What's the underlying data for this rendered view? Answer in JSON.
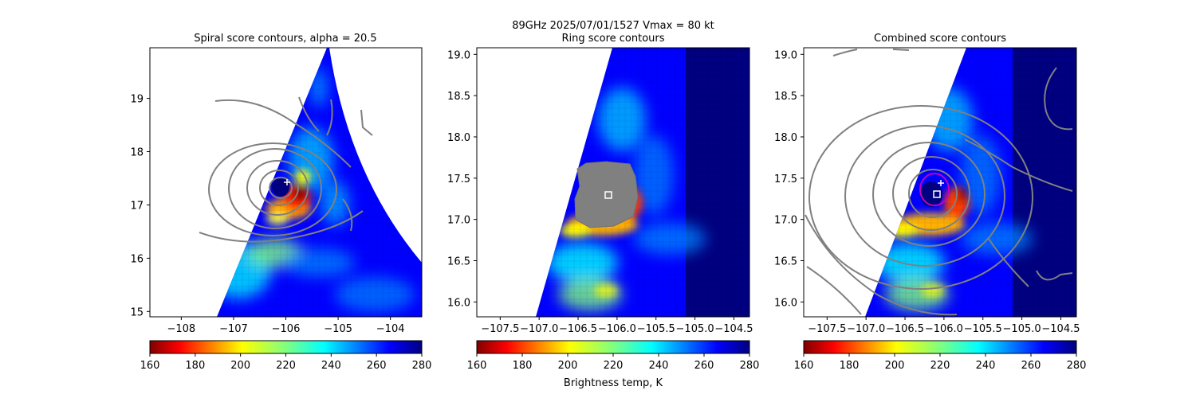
{
  "suptitle_line1": "89GHz  2025/07/01/1527    Vmax = 80 kt",
  "colors": {
    "jet": [
      "#800000",
      "#ff0000",
      "#ff8000",
      "#ffff00",
      "#80ff80",
      "#00ffff",
      "#0080ff",
      "#0000ff",
      "#000080"
    ],
    "contour": "#808080",
    "center_mark": "#ffffff",
    "magenta_ring": "#c000c0"
  },
  "chart_data": [
    {
      "type": "heatmap",
      "title": "Spiral score contours, alpha = 20.5",
      "xlabel": "",
      "ylabel": "",
      "xlim": [
        -108.6,
        -103.4
      ],
      "ylim": [
        14.9,
        19.95
      ],
      "xticks": [
        -108,
        -107,
        -106,
        -105,
        -104
      ],
      "xtick_labels": [
        "−108",
        "−107",
        "−106",
        "−105",
        "−104"
      ],
      "yticks": [
        15,
        16,
        17,
        18,
        19
      ],
      "ytick_labels": [
        "15",
        "16",
        "17",
        "18",
        "19"
      ],
      "center": {
        "lon": -106.0,
        "lat": 17.32
      },
      "plus_mark": {
        "lon": -105.95,
        "lat": 17.42
      },
      "colorbar": {
        "range": [
          160,
          280
        ],
        "ticks": [
          160,
          180,
          200,
          220,
          240,
          260,
          280
        ],
        "tick_labels": [
          "160",
          "180",
          "200",
          "220",
          "240",
          "260",
          "280"
        ],
        "label": ""
      }
    },
    {
      "type": "heatmap",
      "title": "Ring score contours",
      "xlabel": "",
      "ylabel": "",
      "xlim": [
        -107.8,
        -104.3
      ],
      "ylim": [
        15.82,
        19.08
      ],
      "xticks": [
        -107.5,
        -107.0,
        -106.5,
        -106.0,
        -105.5,
        -105.0,
        -104.5
      ],
      "xtick_labels": [
        "−107.5",
        "−107.0",
        "−106.5",
        "−106.0",
        "−105.5",
        "−105.0",
        "−104.5"
      ],
      "yticks": [
        16.0,
        16.5,
        17.0,
        17.5,
        18.0,
        18.5,
        19.0
      ],
      "ytick_labels": [
        "16.0",
        "16.5",
        "17.0",
        "17.5",
        "18.0",
        "18.5",
        "19.0"
      ],
      "center": {
        "lon": -106.0,
        "lat": 17.3
      },
      "colorbar": {
        "range": [
          160,
          280
        ],
        "ticks": [
          160,
          180,
          200,
          220,
          240,
          260,
          280
        ],
        "tick_labels": [
          "160",
          "180",
          "200",
          "220",
          "240",
          "260",
          "280"
        ],
        "label": "Brightness temp, K"
      }
    },
    {
      "type": "heatmap",
      "title": "Combined score contours",
      "xlabel": "",
      "ylabel": "",
      "xlim": [
        -107.8,
        -104.3
      ],
      "ylim": [
        15.82,
        19.08
      ],
      "xticks": [
        -107.5,
        -107.0,
        -106.5,
        -106.0,
        -105.5,
        -105.0,
        -104.5
      ],
      "xtick_labels": [
        "−107.5",
        "−107.0",
        "−106.5",
        "−106.0",
        "−105.5",
        "−105.0",
        "−104.5"
      ],
      "yticks": [
        16.0,
        16.5,
        17.0,
        17.5,
        18.0,
        18.5,
        19.0
      ],
      "ytick_labels": [
        "16.0",
        "16.5",
        "17.0",
        "17.5",
        "18.0",
        "18.5",
        "19.0"
      ],
      "center": {
        "lon": -106.0,
        "lat": 17.3
      },
      "plus_mark": {
        "lon": -105.97,
        "lat": 17.44
      },
      "colorbar": {
        "range": [
          160,
          280
        ],
        "ticks": [
          160,
          180,
          200,
          220,
          240,
          260,
          280
        ],
        "tick_labels": [
          "160",
          "180",
          "200",
          "220",
          "240",
          "260",
          "280"
        ],
        "label": ""
      }
    }
  ]
}
